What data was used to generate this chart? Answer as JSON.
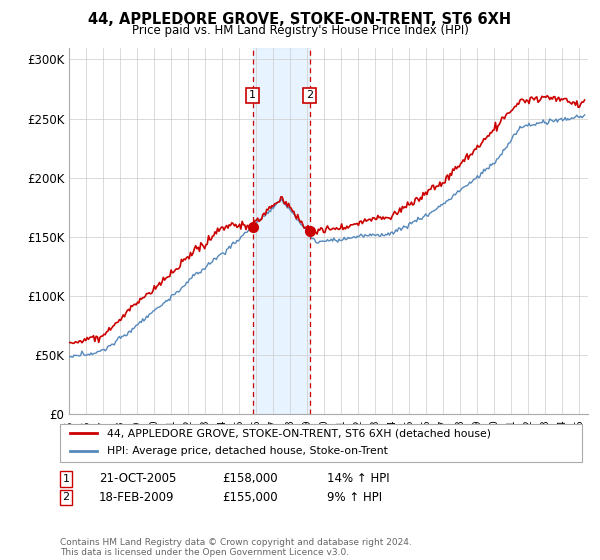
{
  "title": "44, APPLEDORE GROVE, STOKE-ON-TRENT, ST6 6XH",
  "subtitle": "Price paid vs. HM Land Registry's House Price Index (HPI)",
  "legend_line1": "44, APPLEDORE GROVE, STOKE-ON-TRENT, ST6 6XH (detached house)",
  "legend_line2": "HPI: Average price, detached house, Stoke-on-Trent",
  "line1_color": "#cc0000",
  "line2_color": "#5588bb",
  "xlim_start": 1995.0,
  "xlim_end": 2025.5,
  "ylim": [
    0,
    310000
  ],
  "yticks": [
    0,
    50000,
    100000,
    150000,
    200000,
    250000,
    300000
  ],
  "ytick_labels": [
    "£0",
    "£50K",
    "£100K",
    "£150K",
    "£200K",
    "£250K",
    "£300K"
  ],
  "marker1_date": 2005.8,
  "marker1_price": 158000,
  "marker2_date": 2009.15,
  "marker2_price": 155000,
  "shade_start": 2005.8,
  "shade_end": 2009.15,
  "shade_color": "#ddeeff",
  "footnote": "Contains HM Land Registry data © Crown copyright and database right 2024.\nThis data is licensed under the Open Government Licence v3.0."
}
